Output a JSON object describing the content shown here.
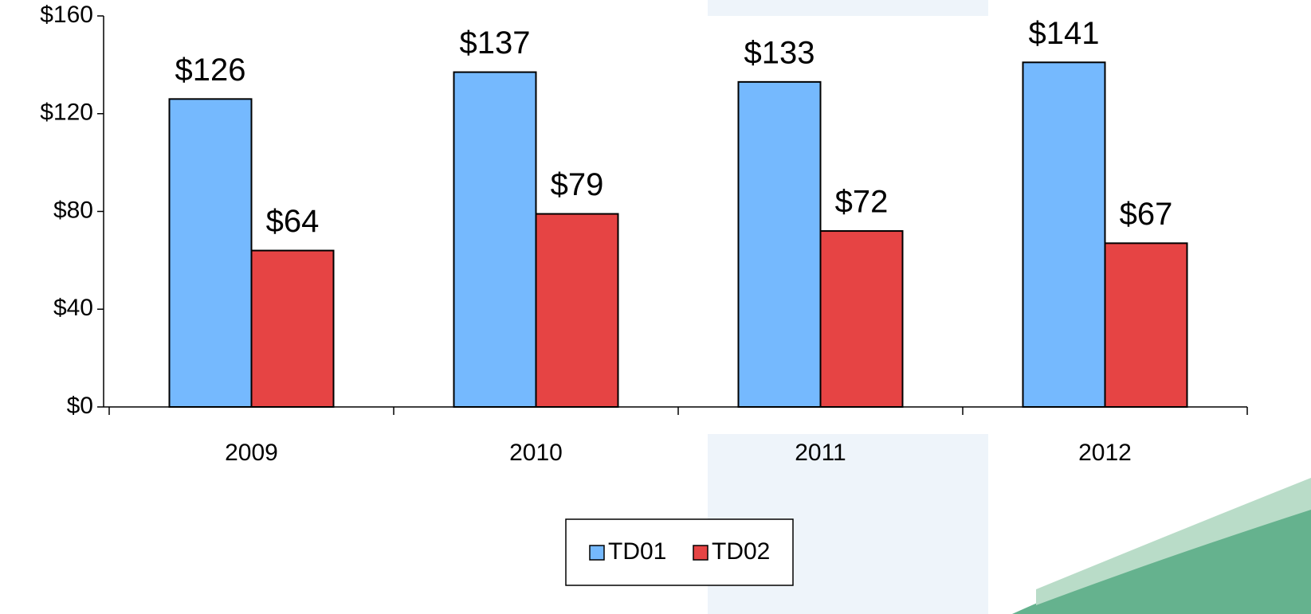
{
  "chart_data": {
    "type": "bar",
    "categories": [
      "2009",
      "2010",
      "2011",
      "2012"
    ],
    "series": [
      {
        "name": "TD01",
        "color": "#75b9fe",
        "values": [
          126,
          137,
          133,
          141
        ],
        "value_labels": [
          "$126",
          "$137",
          "$133",
          "$141"
        ]
      },
      {
        "name": "TD02",
        "color": "#e64444",
        "values": [
          64,
          79,
          72,
          67
        ],
        "value_labels": [
          "$64",
          "$79",
          "$72",
          "$67"
        ]
      }
    ],
    "ylim": [
      0,
      160
    ],
    "yticks": [
      {
        "value": 0,
        "label": "$0"
      },
      {
        "value": 40,
        "label": "$40"
      },
      {
        "value": 80,
        "label": "$80"
      },
      {
        "value": 120,
        "label": "$120"
      },
      {
        "value": 160,
        "label": "$160"
      }
    ],
    "grid": false,
    "legend": "bottom"
  }
}
